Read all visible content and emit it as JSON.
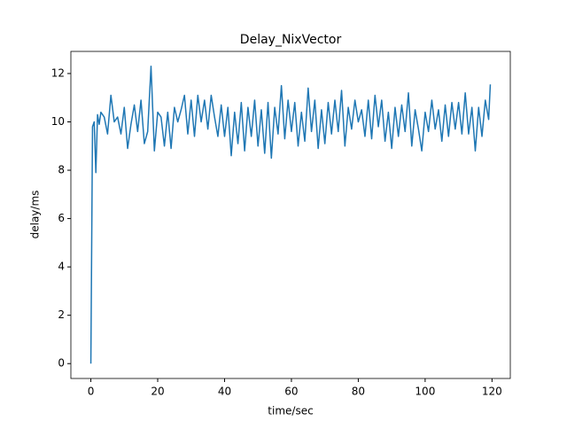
{
  "chart_data": {
    "type": "line",
    "title": "Delay_NixVector",
    "xlabel": "time/sec",
    "ylabel": "delay/ms",
    "color": "#1f77b4",
    "grid": false,
    "xlim": [
      -5.975,
      125.475
    ],
    "ylim": [
      -0.615,
      12.915
    ],
    "xticks": [
      0,
      20,
      40,
      60,
      80,
      100,
      120
    ],
    "yticks": [
      0,
      2,
      4,
      6,
      8,
      10,
      12
    ],
    "x": [
      0,
      0.5,
      1,
      1.5,
      2,
      2.5,
      3,
      4,
      5,
      6,
      7,
      8,
      9,
      10,
      11,
      12,
      13,
      14,
      15,
      16,
      17,
      18,
      19,
      20,
      21,
      22,
      23,
      24,
      25,
      26,
      27,
      28,
      29,
      30,
      31,
      32,
      33,
      34,
      35,
      36,
      37,
      38,
      39,
      40,
      41,
      42,
      43,
      44,
      45,
      46,
      47,
      48,
      49,
      50,
      51,
      52,
      53,
      54,
      55,
      56,
      57,
      58,
      59,
      60,
      61,
      62,
      63,
      64,
      65,
      66,
      67,
      68,
      69,
      70,
      71,
      72,
      73,
      74,
      75,
      76,
      77,
      78,
      79,
      80,
      81,
      82,
      83,
      84,
      85,
      86,
      87,
      88,
      89,
      90,
      91,
      92,
      93,
      94,
      95,
      96,
      97,
      98,
      99,
      100,
      101,
      102,
      103,
      104,
      105,
      106,
      107,
      108,
      109,
      110,
      111,
      112,
      113,
      114,
      115,
      116,
      117,
      118,
      119,
      119.5
    ],
    "values": [
      0,
      9.8,
      10.0,
      7.9,
      10.3,
      9.9,
      10.4,
      10.2,
      9.5,
      11.1,
      10.0,
      10.2,
      9.5,
      10.6,
      8.9,
      9.9,
      10.7,
      9.6,
      10.9,
      9.1,
      9.6,
      12.3,
      8.8,
      10.4,
      10.2,
      9.0,
      10.4,
      8.9,
      10.6,
      10.0,
      10.5,
      11.1,
      9.5,
      10.9,
      9.4,
      11.1,
      10.0,
      10.9,
      9.7,
      11.1,
      10.2,
      9.4,
      10.7,
      9.4,
      10.6,
      8.6,
      10.4,
      9.1,
      10.8,
      8.8,
      10.6,
      9.4,
      10.9,
      9.0,
      10.5,
      8.7,
      10.8,
      8.5,
      10.6,
      9.5,
      11.5,
      9.3,
      10.9,
      9.6,
      10.8,
      9.0,
      10.4,
      9.2,
      11.4,
      9.6,
      10.9,
      8.9,
      10.5,
      9.1,
      10.8,
      9.5,
      10.9,
      9.6,
      11.3,
      9.0,
      10.6,
      9.7,
      10.9,
      10.0,
      10.5,
      9.4,
      10.9,
      9.3,
      11.1,
      9.8,
      10.9,
      9.2,
      10.4,
      8.9,
      10.6,
      9.4,
      10.7,
      9.6,
      11.2,
      9.0,
      10.5,
      9.7,
      8.8,
      10.4,
      9.6,
      10.9,
      9.7,
      10.5,
      9.2,
      10.7,
      9.4,
      10.8,
      9.7,
      10.8,
      9.5,
      11.2,
      9.5,
      10.6,
      8.8,
      10.6,
      9.4,
      10.9,
      10.1,
      11.55
    ]
  }
}
